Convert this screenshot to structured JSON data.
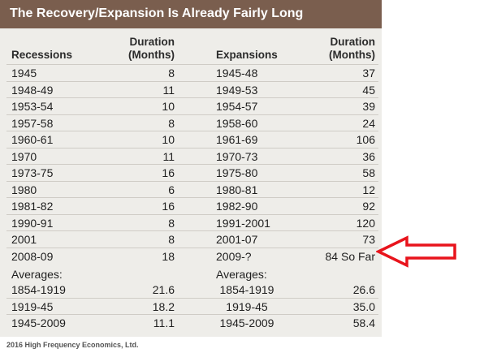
{
  "title": "The Recovery/Expansion Is Already Fairly Long",
  "headers": {
    "recessions": "Recessions",
    "duration_1a": "Duration",
    "duration_1b": "(Months)",
    "expansions": "Expansions",
    "duration_2a": "Duration",
    "duration_2b": "(Months)"
  },
  "rows": [
    {
      "recession": "1945",
      "rec_duration": "8",
      "expansion": "1945-48",
      "exp_duration": "37"
    },
    {
      "recession": "1948-49",
      "rec_duration": "11",
      "expansion": "1949-53",
      "exp_duration": "45"
    },
    {
      "recession": "1953-54",
      "rec_duration": "10",
      "expansion": "1954-57",
      "exp_duration": "39"
    },
    {
      "recession": "1957-58",
      "rec_duration": "8",
      "expansion": "1958-60",
      "exp_duration": "24"
    },
    {
      "recession": "1960-61",
      "rec_duration": "10",
      "expansion": "1961-69",
      "exp_duration": "106"
    },
    {
      "recession": "1970",
      "rec_duration": "11",
      "expansion": "1970-73",
      "exp_duration": "36"
    },
    {
      "recession": "1973-75",
      "rec_duration": "16",
      "expansion": "1975-80",
      "exp_duration": "58"
    },
    {
      "recession": "1980",
      "rec_duration": "6",
      "expansion": "1980-81",
      "exp_duration": "12"
    },
    {
      "recession": "1981-82",
      "rec_duration": "16",
      "expansion": "1982-90",
      "exp_duration": "92"
    },
    {
      "recession": "1990-91",
      "rec_duration": "8",
      "expansion": "1991-2001",
      "exp_duration": "120"
    },
    {
      "recession": "2001",
      "rec_duration": "8",
      "expansion": "2001-07",
      "exp_duration": "73"
    },
    {
      "recession": "2008-09",
      "rec_duration": "18",
      "expansion": "2009-?",
      "exp_duration": "84 So Far"
    }
  ],
  "averages_label_left": "Averages:",
  "averages_label_right": "Averages:",
  "averages": [
    {
      "recession": "1854-1919",
      "rec_duration": "21.6",
      "expansion": "1854-1919",
      "exp_duration": "26.6"
    },
    {
      "recession": "1919-45",
      "rec_duration": "18.2",
      "expansion": "1919-45",
      "exp_duration": "35.0"
    },
    {
      "recession": "1945-2009",
      "rec_duration": "11.1",
      "expansion": "1945-2009",
      "exp_duration": "58.4"
    }
  ],
  "footer": "2016 High Frequency Economics, Ltd.",
  "colors": {
    "title_bar": "#7a5e4e",
    "panel": "#eeede9",
    "arrow": "#e8141c"
  },
  "icons": {
    "annotation_arrow": "left-arrow-icon"
  }
}
